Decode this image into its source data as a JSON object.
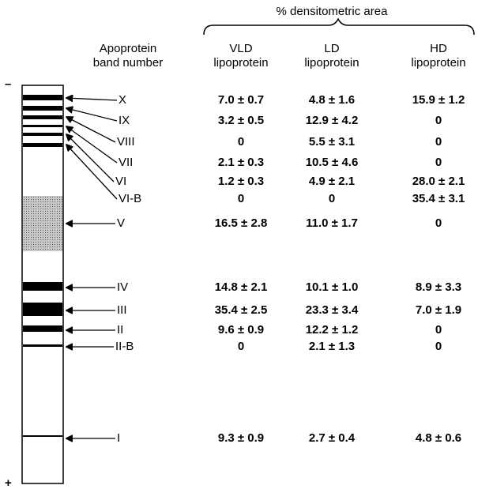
{
  "header": {
    "title": "% densitometric area",
    "band_column": [
      "Apoprotein",
      "band number"
    ],
    "columns": [
      [
        "VLD",
        "lipoprotein"
      ],
      [
        "LD",
        "lipoprotein"
      ],
      [
        "HD",
        "lipoprotein"
      ]
    ]
  },
  "polarity": {
    "top": "–",
    "bottom": "+"
  },
  "table": {
    "rows": [
      {
        "band": "X",
        "values": [
          "7.0 ± 0.7",
          "4.8 ± 1.6",
          "15.9 ± 1.2"
        ]
      },
      {
        "band": "IX",
        "values": [
          "3.2 ± 0.5",
          "12.9 ± 4.2",
          "0"
        ]
      },
      {
        "band": "VIII",
        "values": [
          "0",
          "5.5 ± 3.1",
          "0"
        ]
      },
      {
        "band": "VII",
        "values": [
          "2.1 ± 0.3",
          "10.5 ± 4.6",
          "0"
        ]
      },
      {
        "band": "VI",
        "values": [
          "1.2 ± 0.3",
          "4.9 ± 2.1",
          "28.0 ± 2.1"
        ]
      },
      {
        "band": "VI-B",
        "values": [
          "0",
          "0",
          "35.4 ± 3.1"
        ]
      },
      {
        "band": "V",
        "values": [
          "16.5 ± 2.8",
          "11.0 ± 1.7",
          "0"
        ]
      },
      {
        "band": "IV",
        "values": [
          "14.8 ± 2.1",
          "10.1 ± 1.0",
          "8.9 ± 3.3"
        ]
      },
      {
        "band": "III",
        "values": [
          "35.4 ± 2.5",
          "23.3 ± 3.4",
          "7.0 ± 1.9"
        ]
      },
      {
        "band": "II",
        "values": [
          "9.6 ± 0.9",
          "12.2 ± 1.2",
          "0"
        ]
      },
      {
        "band": "II-B",
        "values": [
          "0",
          "2.1 ± 1.3",
          "0"
        ]
      },
      {
        "band": "I",
        "values": [
          "9.3 ± 0.9",
          "2.7 ± 0.4",
          "4.8 ± 0.6"
        ]
      }
    ]
  }
}
